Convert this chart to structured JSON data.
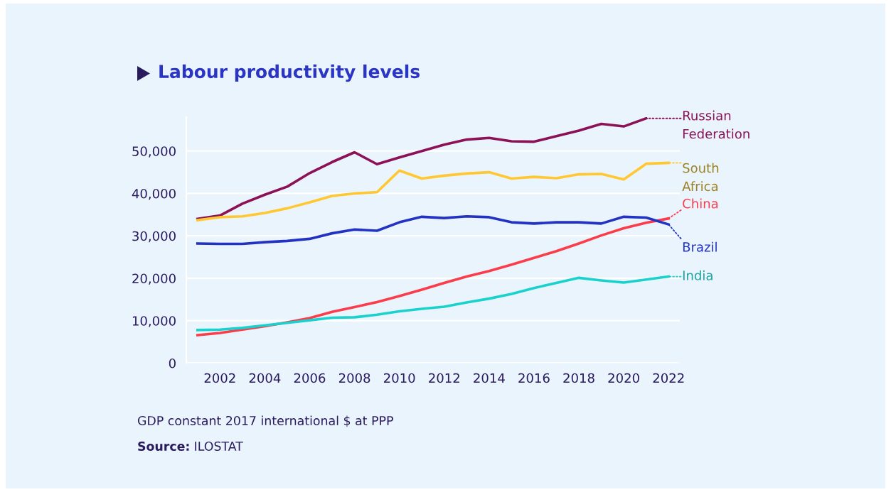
{
  "chart_data": {
    "type": "line",
    "title": "Labour productivity levels",
    "x": [
      2001,
      2002,
      2003,
      2004,
      2005,
      2006,
      2007,
      2008,
      2009,
      2010,
      2011,
      2012,
      2013,
      2014,
      2015,
      2016,
      2017,
      2018,
      2019,
      2020,
      2021,
      2022
    ],
    "series": [
      {
        "name": "Russian Federation",
        "color": "#8c1157",
        "values": [
          34000,
          34800,
          37600,
          39700,
          41600,
          44800,
          47400,
          49700,
          46900,
          48500,
          50000,
          51500,
          52700,
          53100,
          52300,
          52200,
          53500,
          54800,
          56400,
          55800,
          57700,
          null
        ]
      },
      {
        "name": "South Africa",
        "color": "#ffc832",
        "values": [
          33700,
          34400,
          34600,
          35400,
          36500,
          37900,
          39400,
          40000,
          40300,
          45400,
          43500,
          44200,
          44700,
          45000,
          43500,
          43900,
          43600,
          44500,
          44600,
          43300,
          47000,
          47200
        ]
      },
      {
        "name": "China",
        "color": "#fa3c4b",
        "values": [
          6600,
          7100,
          7900,
          8700,
          9600,
          10600,
          12100,
          13200,
          14400,
          15800,
          17300,
          18900,
          20400,
          21700,
          23200,
          24800,
          26400,
          28200,
          30100,
          31800,
          33100,
          34100
        ]
      },
      {
        "name": "Brazil",
        "color": "#2233c4",
        "values": [
          28200,
          28100,
          28100,
          28500,
          28800,
          29300,
          30600,
          31500,
          31200,
          33200,
          34500,
          34200,
          34600,
          34400,
          33200,
          32900,
          33200,
          33200,
          32900,
          34500,
          34300,
          32700
        ]
      },
      {
        "name": "India",
        "color": "#19d2cd",
        "values": [
          7800,
          7900,
          8300,
          8900,
          9500,
          10100,
          10700,
          10800,
          11400,
          12200,
          12800,
          13300,
          14300,
          15200,
          16300,
          17700,
          18900,
          20100,
          19500,
          19000,
          19700,
          20400
        ]
      }
    ],
    "xlim": [
      2000.5,
      2022.5
    ],
    "xticks": [
      2002,
      2004,
      2006,
      2008,
      2010,
      2012,
      2014,
      2016,
      2018,
      2020,
      2022
    ],
    "ylim": [
      0,
      58000
    ],
    "yticks": [
      {
        "value": 0,
        "label": "0"
      },
      {
        "value": 10000,
        "label": "10,000"
      },
      {
        "value": 20000,
        "label": "20,000"
      },
      {
        "value": 30000,
        "label": "30,000"
      },
      {
        "value": 40000,
        "label": "40,000"
      },
      {
        "value": 50000,
        "label": "50,000"
      }
    ],
    "grid": "y",
    "legend": "right",
    "marker": "none",
    "line_style": "solid",
    "annotations": [
      "GDP constant 2017 international $ at PPP",
      "Source: ILOSTAT"
    ]
  }
}
